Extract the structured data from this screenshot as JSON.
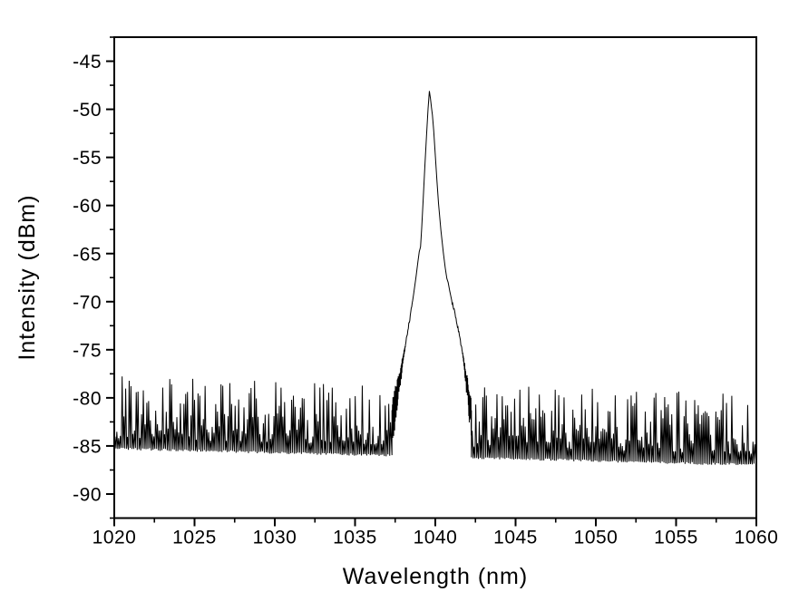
{
  "figure": {
    "background_color": "#ffffff",
    "trace_color": "#000000",
    "frame_color": "#000000",
    "title": ""
  },
  "chart_data": {
    "type": "line",
    "title": "",
    "xlabel": "Wavelength (nm)",
    "ylabel": "Intensity (dBm)",
    "xlim": [
      1020,
      1060
    ],
    "ylim": [
      -92.5,
      -42.5
    ],
    "grid": false,
    "legend": false,
    "x_major_ticks": [
      1020,
      1025,
      1030,
      1035,
      1040,
      1045,
      1050,
      1055,
      1060
    ],
    "x_minor_ticks": [
      1022.5,
      1027.5,
      1032.5,
      1037.5,
      1042.5,
      1047.5,
      1052.5,
      1057.5
    ],
    "y_major_ticks": [
      -90,
      -85,
      -80,
      -75,
      -70,
      -65,
      -60,
      -55,
      -50,
      -45
    ],
    "y_minor_ticks": [
      -92.5,
      -87.5,
      -82.5,
      -77.5,
      -72.5,
      -67.5,
      -62.5,
      -57.5,
      -52.5,
      -47.5,
      -42.5
    ],
    "series": [
      {
        "name": "optical-spectrum",
        "peak": {
          "wavelength_nm": 1039.63,
          "intensity_dbm": -48.1
        },
        "peak_envelope_points": [
          [
            1037.3,
            -81.5
          ],
          [
            1037.45,
            -80.3
          ],
          [
            1037.6,
            -79.2
          ],
          [
            1037.75,
            -77.9
          ],
          [
            1037.9,
            -76.6
          ],
          [
            1038.05,
            -75.2
          ],
          [
            1038.2,
            -73.9
          ],
          [
            1038.35,
            -72.4
          ],
          [
            1038.5,
            -70.9
          ],
          [
            1038.65,
            -69.2
          ],
          [
            1038.8,
            -67.4
          ],
          [
            1038.92,
            -65.8
          ],
          [
            1039.0,
            -64.8
          ],
          [
            1039.08,
            -64.3
          ],
          [
            1039.15,
            -62.4
          ],
          [
            1039.25,
            -59.2
          ],
          [
            1039.35,
            -55.9
          ],
          [
            1039.45,
            -52.8
          ],
          [
            1039.55,
            -49.9
          ],
          [
            1039.63,
            -48.1
          ],
          [
            1039.7,
            -48.9
          ],
          [
            1039.76,
            -49.8
          ],
          [
            1039.82,
            -50.6
          ],
          [
            1039.9,
            -52.2
          ],
          [
            1040.0,
            -54.8
          ],
          [
            1040.1,
            -57.4
          ],
          [
            1040.2,
            -59.8
          ],
          [
            1040.35,
            -62.6
          ],
          [
            1040.5,
            -64.9
          ],
          [
            1040.62,
            -66.5
          ],
          [
            1040.72,
            -67.6
          ],
          [
            1040.8,
            -68.0
          ],
          [
            1040.9,
            -68.9
          ],
          [
            1041.05,
            -70.1
          ],
          [
            1041.2,
            -71.1
          ],
          [
            1041.35,
            -72.2
          ],
          [
            1041.5,
            -73.5
          ],
          [
            1041.65,
            -74.9
          ],
          [
            1041.8,
            -76.5
          ],
          [
            1041.95,
            -78.1
          ],
          [
            1042.1,
            -79.7
          ],
          [
            1042.25,
            -81.3
          ]
        ],
        "noise_floor": {
          "baseline_start_dbm": -85.4,
          "baseline_end_dbm": -87.1,
          "spike_min_db": 1.2,
          "spike_max_db": 7.7,
          "spike_top_cap_dbm": -77.4,
          "spike_spacing_nm": 0.11,
          "left_region_nm": [
            1020,
            1037.3
          ],
          "right_region_nm": [
            1042.25,
            1060
          ],
          "seed": 42
        }
      }
    ]
  }
}
